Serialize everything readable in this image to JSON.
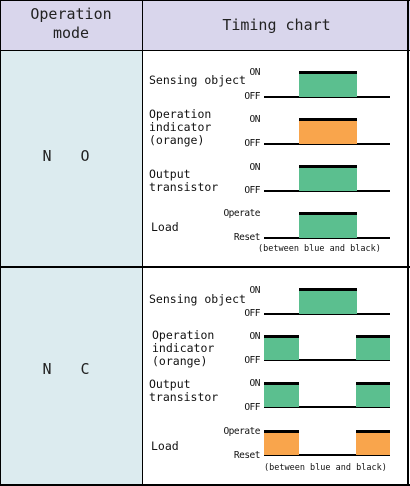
{
  "header": {
    "mode": "Operation\nmode",
    "timing": "Timing chart"
  },
  "colors": {
    "green": "#5bbf8f",
    "orange": "#f9a54c"
  },
  "sections": [
    {
      "mode": "N O",
      "rows": [
        {
          "label": "Sensing object",
          "on": "ON",
          "off": "OFF"
        },
        {
          "label": "Operation\nindicator\n(orange)",
          "on": "ON",
          "off": "OFF"
        },
        {
          "label": "Output\ntransistor",
          "on": "ON",
          "off": "OFF"
        },
        {
          "label": "Load",
          "on": "Operate",
          "off": "Reset"
        }
      ],
      "note": "(between blue and black)"
    },
    {
      "mode": "N C",
      "rows": [
        {
          "label": "Sensing object",
          "on": "ON",
          "off": "OFF"
        },
        {
          "label": "Operation\nindicator\n(orange)",
          "on": "ON",
          "off": "OFF"
        },
        {
          "label": "Output\ntransistor",
          "on": "ON",
          "off": "OFF"
        },
        {
          "label": "Load",
          "on": "Operate",
          "off": "Reset"
        }
      ],
      "note": "(between blue and black)"
    }
  ]
}
